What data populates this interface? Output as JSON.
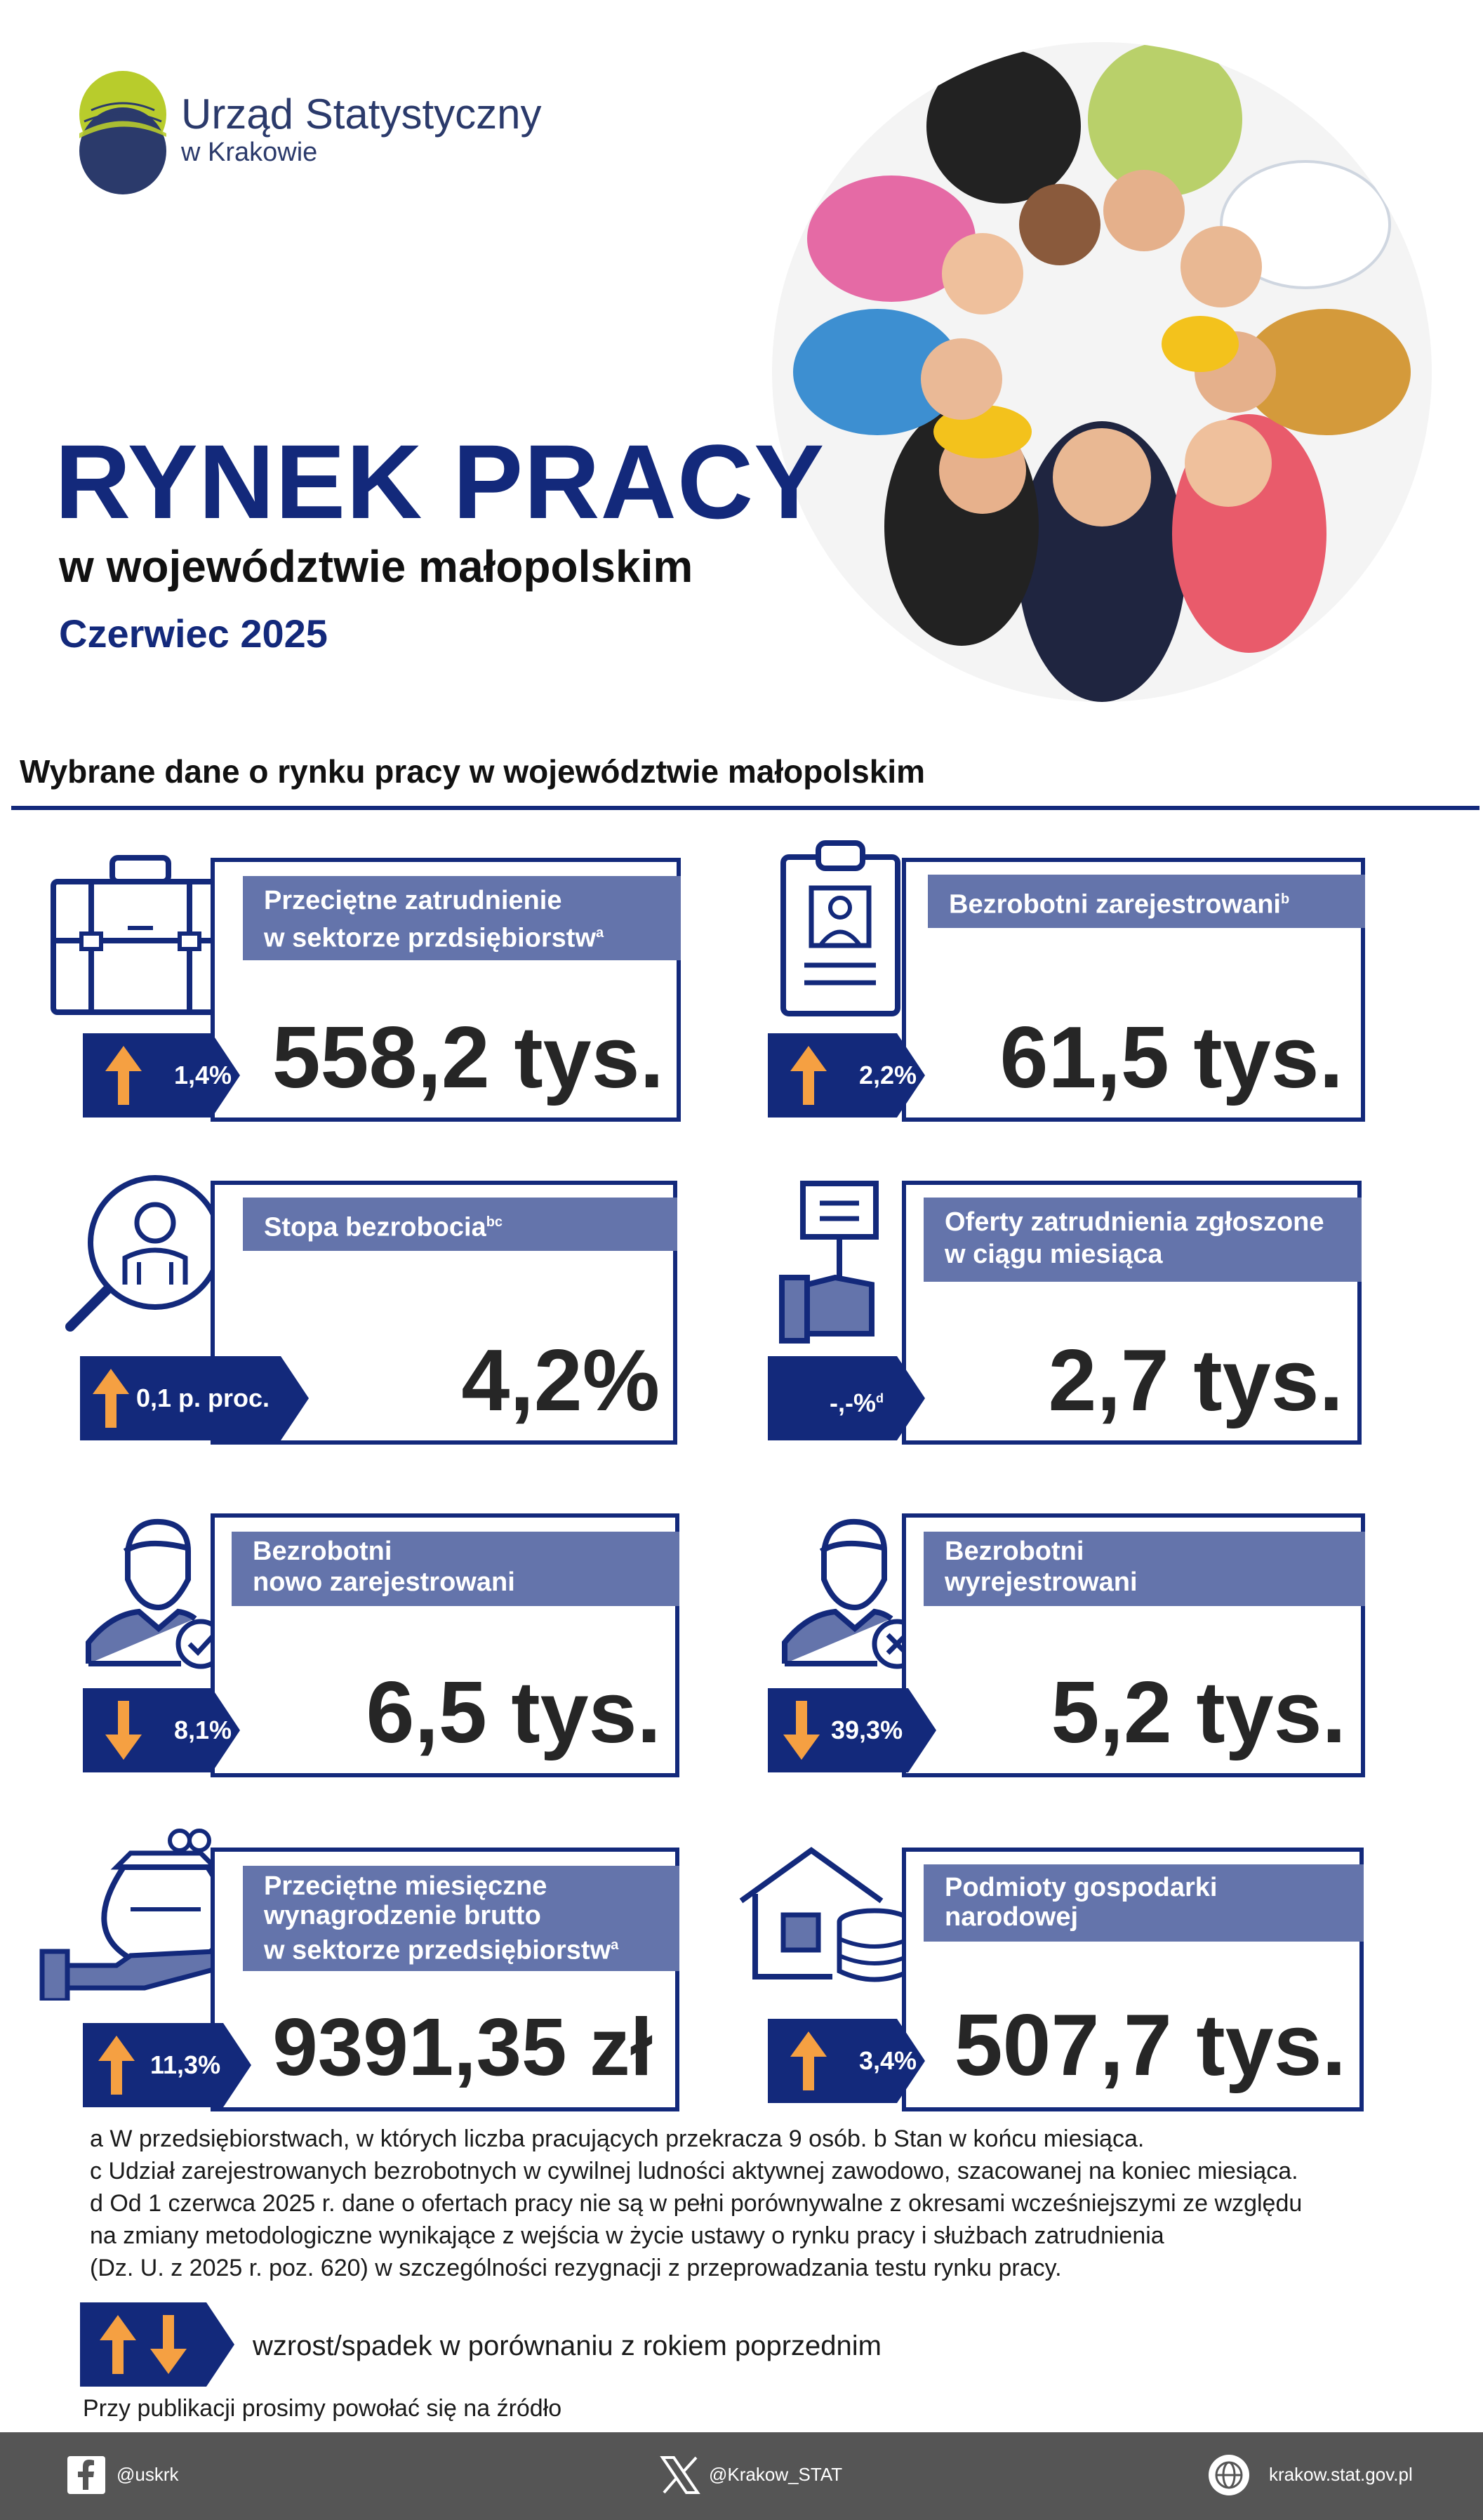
{
  "header": {
    "org_name": "Urząd Statystyczny",
    "org_sub": "w Krakowie",
    "title": "RYNEK PRACY",
    "subtitle": "w województwie małopolskim",
    "period": "Czerwiec 2025"
  },
  "section_title": "Wybrane dane o rynku pracy w województwie małopolskim",
  "cards": {
    "employment": {
      "label_line1": "Przeciętne zatrudnienie",
      "label_line2": "w sektorze przdsiębiorstw",
      "sup": "a",
      "value": "558,2 tys.",
      "change": "1,4%",
      "direction": "up"
    },
    "registered_unemployed": {
      "label_line1": "Bezrobotni zarejestrowani",
      "sup": "b",
      "value": "61,5 tys.",
      "change": "2,2%",
      "direction": "up"
    },
    "unemployment_rate": {
      "label_line1": "Stopa bezrobocia",
      "sup": "bc",
      "value": "4,2%",
      "change": "0,1 p. proc.",
      "direction": "up"
    },
    "job_offers": {
      "label_line1": "Oferty zatrudnienia zgłoszone",
      "label_line2": "w ciągu miesiąca",
      "value": "2,7 tys.",
      "change": "-,-%",
      "sup": "d",
      "direction": "none"
    },
    "newly_registered": {
      "label_line1": "Bezrobotni",
      "label_line2": "nowo zarejestrowani",
      "value": "6,5 tys.",
      "change": "8,1%",
      "direction": "down"
    },
    "deregistered": {
      "label_line1": "Bezrobotni",
      "label_line2": "wyrejestrowani",
      "value": "5,2 tys.",
      "change": "39,3%",
      "direction": "down"
    },
    "wages": {
      "label_line1": "Przeciętne miesięczne",
      "label_line2": "wynagrodzenie brutto",
      "label_line3": "w sektorze przedsiębiorstw",
      "sup": "a",
      "value": "9391,35 zł",
      "change": "11,3%",
      "direction": "up"
    },
    "entities": {
      "label_line1": "Podmioty gospodarki",
      "label_line2": "narodowej",
      "value": "507,7 tys.",
      "change": "3,4%",
      "direction": "up"
    }
  },
  "footnotes": {
    "line1": "a W przedsiębiorstwach, w których liczba pracujących przekracza 9 osób.   b Stan w końcu miesiąca.",
    "line2": "c Udział zarejestrowanych bezrobotnych w cywilnej ludności aktywnej zawodowo, szacowanej na koniec miesiąca.",
    "line3": "d Od 1 czerwca 2025 r. dane o ofertach pracy nie są w pełni porównywalne z okresami wcześniejszymi ze względu",
    "line4": "na zmiany metodologiczne wynikające z wejścia w życie ustawy o rynku pracy i służbach zatrudnienia",
    "line5": "(Dz. U. z 2025 r. poz. 620) w szczególności rezygnacji z przeprowadzania testu rynku pracy."
  },
  "legend_text": "wzrost/spadek w porównaniu z rokiem poprzednim",
  "source_note": "Przy publikacji prosimy powołać się na źródło",
  "footer": {
    "facebook": "@uskrk",
    "x": "@Krakow_STAT",
    "web": "krakow.stat.gov.pl"
  },
  "colors": {
    "navy": "#13297b",
    "label_bg": "#6474ab",
    "arrow": "#f5a042",
    "footer": "#555555"
  }
}
